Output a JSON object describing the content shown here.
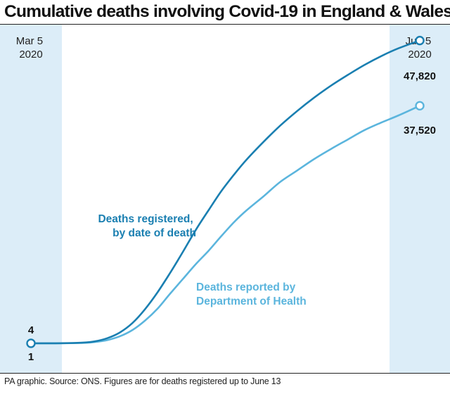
{
  "title": "Cumulative deaths involving Covid-19 in England & Wales",
  "footer": "PA graphic. Source: ONS. Figures are for deaths registered up to June 13",
  "colors": {
    "registered": "#1a7fb1",
    "reported": "#5bb5dd",
    "band": "#dcedf8"
  },
  "chart_data": {
    "type": "line",
    "x_start_label": [
      "Mar 5",
      "2020"
    ],
    "x_end_label": [
      "Jun 5",
      "2020"
    ],
    "ylim": [
      0,
      50000
    ],
    "series": [
      {
        "key": "registered",
        "name": [
          "Deaths registered,",
          "by date of death"
        ],
        "start_label": "4",
        "end_label": "47,820",
        "x": [
          "2020-03-05",
          "2020-03-12",
          "2020-03-17",
          "2020-03-20",
          "2020-03-23",
          "2020-03-26",
          "2020-03-29",
          "2020-04-01",
          "2020-04-04",
          "2020-04-07",
          "2020-04-10",
          "2020-04-13",
          "2020-04-16",
          "2020-04-19",
          "2020-04-22",
          "2020-04-25",
          "2020-04-29",
          "2020-05-03",
          "2020-05-07",
          "2020-05-11",
          "2020-05-15",
          "2020-05-19",
          "2020-05-23",
          "2020-05-27",
          "2020-05-31",
          "2020-06-05"
        ],
        "y": [
          4,
          20,
          100,
          300,
          800,
          1700,
          3200,
          5400,
          8100,
          11200,
          14500,
          17900,
          21000,
          24000,
          26600,
          29000,
          31800,
          34400,
          36700,
          38800,
          40700,
          42400,
          44000,
          45400,
          46600,
          47820
        ]
      },
      {
        "key": "reported",
        "name": [
          "Deaths reported by",
          "Department of Health"
        ],
        "start_label": "1",
        "end_label": "37,520",
        "x": [
          "2020-03-05",
          "2020-03-12",
          "2020-03-17",
          "2020-03-20",
          "2020-03-23",
          "2020-03-26",
          "2020-03-29",
          "2020-04-01",
          "2020-04-04",
          "2020-04-07",
          "2020-04-10",
          "2020-04-13",
          "2020-04-16",
          "2020-04-19",
          "2020-04-22",
          "2020-04-25",
          "2020-04-29",
          "2020-05-03",
          "2020-05-07",
          "2020-05-11",
          "2020-05-15",
          "2020-05-19",
          "2020-05-23",
          "2020-05-27",
          "2020-05-31",
          "2020-06-05"
        ],
        "y": [
          1,
          10,
          60,
          200,
          500,
          1100,
          2100,
          3600,
          5500,
          7900,
          10200,
          12500,
          14600,
          16900,
          19100,
          21000,
          23200,
          25500,
          27300,
          29100,
          30700,
          32200,
          33700,
          34900,
          36000,
          37520
        ]
      }
    ]
  }
}
